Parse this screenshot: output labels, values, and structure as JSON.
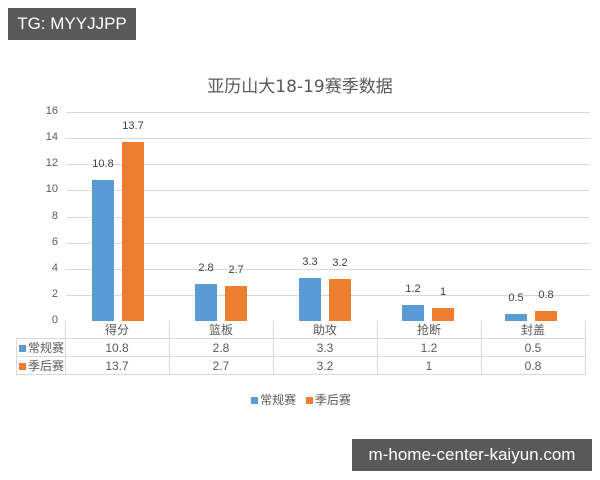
{
  "watermark_top": "TG: MYYJJPP",
  "watermark_bottom": "m-home-center-kaiyun.com",
  "chart_data": {
    "type": "bar",
    "title": "亚历山大18-19赛季数据",
    "xlabel": "",
    "ylabel": "",
    "ylim": [
      0,
      16
    ],
    "yticks": [
      0,
      2,
      4,
      6,
      8,
      10,
      12,
      14,
      16
    ],
    "grid": true,
    "legend_position": "bottom",
    "categories": [
      "得分",
      "篮板",
      "助攻",
      "抢断",
      "封盖"
    ],
    "series": [
      {
        "name": "常规赛",
        "color": "#5b9bd5",
        "values": [
          10.8,
          2.8,
          3.3,
          1.2,
          0.5
        ],
        "labels": [
          "10.8",
          "2.8",
          "3.3",
          "1.2",
          "0.5"
        ]
      },
      {
        "name": "季后赛",
        "color": "#ed7d31",
        "values": [
          13.7,
          2.7,
          3.2,
          1,
          0.8
        ],
        "labels": [
          "13.7",
          "2.7",
          "3.2",
          "1",
          "0.8"
        ]
      }
    ],
    "data_table": true
  }
}
